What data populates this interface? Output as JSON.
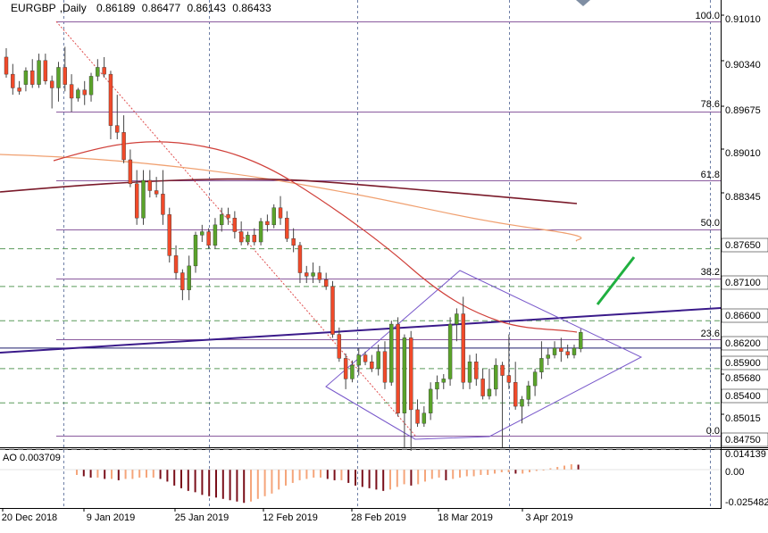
{
  "header": {
    "symbol": "EURGBP",
    "timeframe": "Daily",
    "open": "0.86189",
    "high": "0.86477",
    "low": "0.86143",
    "close": "0.86433"
  },
  "ao": {
    "label": "AO 0.003709",
    "ticks": [
      "0.014139",
      "0.00",
      "-0.025482"
    ]
  },
  "chart_data": {
    "type": "candlestick",
    "symbol": "EURGBP",
    "timeframe": "Daily",
    "price_axis_labels": [
      "0.91010",
      "0.90340",
      "0.89675",
      "0.89010",
      "0.88345",
      "0.87650",
      "0.87100",
      "0.86600",
      "0.86200",
      "0.85900",
      "0.85680",
      "0.85400",
      "0.85015",
      "0.84750"
    ],
    "highlighted_levels": [
      "0.87650",
      "0.87100",
      "0.86600",
      "0.86200",
      "0.85900",
      "0.85400",
      "0.84750"
    ],
    "fibonacci_levels": [
      "100.0",
      "78.6",
      "61.8",
      "50.0",
      "38.2",
      "23.6",
      "0.0"
    ],
    "date_labels": [
      "20 Dec 2018",
      "9 Jan 2019",
      "25 Jan 2019",
      "12 Feb 2019",
      "28 Feb 2019",
      "18 Mar 2019",
      "3 Apr 2019"
    ],
    "ylim": [
      0.8455,
      0.9115
    ],
    "candles": [
      [
        0.9045,
        0.9058,
        0.9015,
        0.902
      ],
      [
        0.902,
        0.9035,
        0.899,
        0.9
      ],
      [
        0.9,
        0.901,
        0.899,
        0.8995
      ],
      [
        0.9005,
        0.903,
        0.8995,
        0.9025
      ],
      [
        0.9025,
        0.9042,
        0.9,
        0.9005
      ],
      [
        0.9005,
        0.905,
        0.9,
        0.904
      ],
      [
        0.904,
        0.905,
        0.9005,
        0.901
      ],
      [
        0.901,
        0.9018,
        0.897,
        0.9
      ],
      [
        0.9,
        0.9038,
        0.898,
        0.903
      ],
      [
        0.903,
        0.906,
        0.8995,
        0.9005
      ],
      [
        0.9005,
        0.902,
        0.8965,
        0.8985
      ],
      [
        0.8985,
        0.9,
        0.898,
        0.8997
      ],
      [
        0.8997,
        0.901,
        0.8975,
        0.899
      ],
      [
        0.899,
        0.9022,
        0.898,
        0.9017
      ],
      [
        0.9017,
        0.9042,
        0.901,
        0.903
      ],
      [
        0.903,
        0.9045,
        0.9015,
        0.902
      ],
      [
        0.902,
        0.9025,
        0.8925,
        0.8945
      ],
      [
        0.8945,
        0.899,
        0.8925,
        0.8935
      ],
      [
        0.8935,
        0.896,
        0.889,
        0.8895
      ],
      [
        0.8895,
        0.891,
        0.8855,
        0.886
      ],
      [
        0.886,
        0.888,
        0.88,
        0.881
      ],
      [
        0.881,
        0.888,
        0.88,
        0.8865
      ],
      [
        0.8865,
        0.888,
        0.884,
        0.885
      ],
      [
        0.885,
        0.887,
        0.884,
        0.8845
      ],
      [
        0.8845,
        0.888,
        0.88,
        0.8815
      ],
      [
        0.8815,
        0.8825,
        0.8745,
        0.8755
      ],
      [
        0.8755,
        0.877,
        0.872,
        0.873
      ],
      [
        0.873,
        0.8735,
        0.869,
        0.8705
      ],
      [
        0.8705,
        0.8755,
        0.869,
        0.874
      ],
      [
        0.874,
        0.879,
        0.873,
        0.8785
      ],
      [
        0.8785,
        0.88,
        0.8775,
        0.879
      ],
      [
        0.879,
        0.8795,
        0.8765,
        0.877
      ],
      [
        0.877,
        0.881,
        0.8765,
        0.88
      ],
      [
        0.88,
        0.8825,
        0.879,
        0.8815
      ],
      [
        0.8815,
        0.8825,
        0.88,
        0.881
      ],
      [
        0.881,
        0.882,
        0.878,
        0.879
      ],
      [
        0.879,
        0.8805,
        0.877,
        0.8775
      ],
      [
        0.8775,
        0.879,
        0.877,
        0.8785
      ],
      [
        0.8785,
        0.8795,
        0.877,
        0.8775
      ],
      [
        0.8775,
        0.881,
        0.877,
        0.8805
      ],
      [
        0.8805,
        0.8815,
        0.879,
        0.88
      ],
      [
        0.88,
        0.883,
        0.8795,
        0.8825
      ],
      [
        0.8825,
        0.8842,
        0.88,
        0.881
      ],
      [
        0.881,
        0.882,
        0.8775,
        0.878
      ],
      [
        0.878,
        0.8795,
        0.876,
        0.877
      ],
      [
        0.877,
        0.8775,
        0.8715,
        0.873
      ],
      [
        0.873,
        0.874,
        0.8715,
        0.8725
      ],
      [
        0.8725,
        0.8745,
        0.8715,
        0.873
      ],
      [
        0.873,
        0.874,
        0.8715,
        0.872
      ],
      [
        0.872,
        0.873,
        0.8705,
        0.871
      ],
      [
        0.871,
        0.8718,
        0.8635,
        0.864
      ],
      [
        0.864,
        0.865,
        0.86,
        0.8605
      ],
      [
        0.8605,
        0.8612,
        0.856,
        0.8575
      ],
      [
        0.8575,
        0.8602,
        0.857,
        0.8595
      ],
      [
        0.8595,
        0.862,
        0.858,
        0.861
      ],
      [
        0.861,
        0.8615,
        0.8595,
        0.86
      ],
      [
        0.86,
        0.861,
        0.8585,
        0.859
      ],
      [
        0.859,
        0.8625,
        0.858,
        0.8615
      ],
      [
        0.8615,
        0.863,
        0.856,
        0.857
      ],
      [
        0.857,
        0.866,
        0.8565,
        0.8655
      ],
      [
        0.8655,
        0.8665,
        0.852,
        0.8525
      ],
      [
        0.8525,
        0.864,
        0.8475,
        0.8635
      ],
      [
        0.8635,
        0.8645,
        0.847,
        0.853
      ],
      [
        0.853,
        0.8545,
        0.8505,
        0.851
      ],
      [
        0.851,
        0.8535,
        0.8505,
        0.8525
      ],
      [
        0.8525,
        0.857,
        0.8515,
        0.856
      ],
      [
        0.856,
        0.858,
        0.8545,
        0.857
      ],
      [
        0.857,
        0.8582,
        0.856,
        0.8575
      ],
      [
        0.8575,
        0.8665,
        0.8565,
        0.8655
      ],
      [
        0.8655,
        0.8678,
        0.863,
        0.867
      ],
      [
        0.867,
        0.8695,
        0.856,
        0.857
      ],
      [
        0.857,
        0.861,
        0.856,
        0.86
      ],
      [
        0.86,
        0.8612,
        0.8565,
        0.8575
      ],
      [
        0.8575,
        0.859,
        0.8545,
        0.855
      ],
      [
        0.855,
        0.859,
        0.8545,
        0.856
      ],
      [
        0.856,
        0.8605,
        0.855,
        0.8595
      ],
      [
        0.8595,
        0.86,
        0.8475,
        0.858
      ],
      [
        0.858,
        0.864,
        0.856,
        0.857
      ],
      [
        0.857,
        0.86,
        0.853,
        0.8535
      ],
      [
        0.8535,
        0.855,
        0.851,
        0.8545
      ],
      [
        0.8545,
        0.8572,
        0.8535,
        0.8565
      ],
      [
        0.8565,
        0.859,
        0.855,
        0.8585
      ],
      [
        0.8585,
        0.863,
        0.8575,
        0.8605
      ],
      [
        0.8605,
        0.862,
        0.8595,
        0.861
      ],
      [
        0.861,
        0.863,
        0.8605,
        0.862
      ],
      [
        0.862,
        0.8635,
        0.86,
        0.8615
      ],
      [
        0.8615,
        0.8625,
        0.8605,
        0.861
      ],
      [
        0.861,
        0.8625,
        0.8605,
        0.862
      ],
      [
        0.8619,
        0.8648,
        0.8614,
        0.8643
      ]
    ],
    "ao_values": [
      -0.004,
      -0.005,
      -0.006,
      -0.006,
      -0.007,
      -0.007,
      -0.008,
      -0.007,
      -0.007,
      -0.006,
      -0.006,
      -0.006,
      -0.007,
      -0.009,
      -0.012,
      -0.014,
      -0.016,
      -0.017,
      -0.019,
      -0.02,
      -0.021,
      -0.022,
      -0.023,
      -0.024,
      -0.025,
      -0.024,
      -0.022,
      -0.02,
      -0.018,
      -0.015,
      -0.012,
      -0.01,
      -0.008,
      -0.007,
      -0.006,
      -0.006,
      -0.007,
      -0.008,
      -0.008,
      -0.01,
      -0.012,
      -0.013,
      -0.014,
      -0.015,
      -0.016,
      -0.015,
      -0.013,
      -0.011,
      -0.012,
      -0.011,
      -0.009,
      -0.007,
      -0.006,
      -0.008,
      -0.007,
      -0.006,
      -0.005,
      -0.005,
      -0.004,
      -0.004,
      -0.003,
      -0.002,
      -0.002,
      -0.003,
      -0.003,
      -0.002,
      -0.001,
      0.0,
      0.001,
      0.002,
      0.003,
      0.004,
      0.0037
    ],
    "ao_ylim": [
      -0.0255,
      0.0142
    ]
  }
}
